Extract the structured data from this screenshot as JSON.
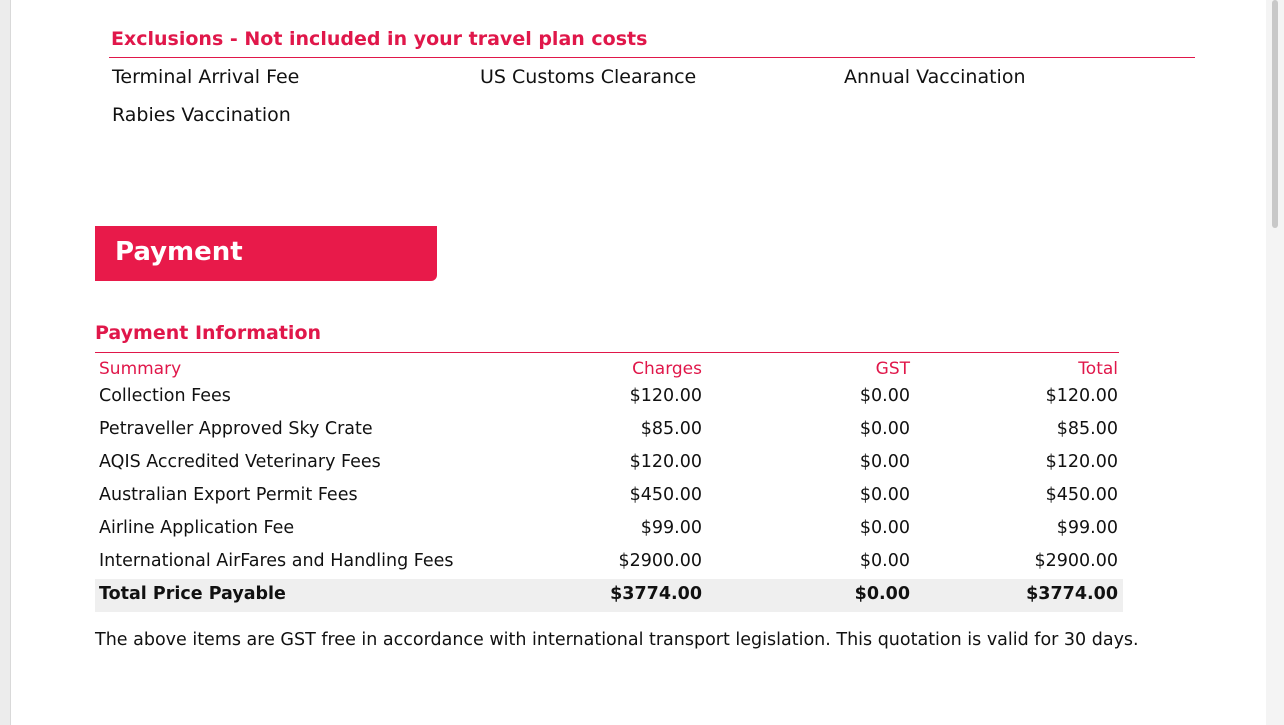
{
  "exclusions": {
    "title": "Exclusions - Not included in your travel plan costs",
    "items": [
      "Terminal Arrival Fee",
      "US Customs Clearance",
      "Annual Vaccination",
      "Rabies Vaccination"
    ]
  },
  "payment": {
    "banner": "Payment",
    "section_title": "Payment Information",
    "columns": [
      "Summary",
      "Charges",
      "GST",
      "Total"
    ],
    "rows": [
      {
        "summary": "Collection Fees",
        "charges": "$120.00",
        "gst": "$0.00",
        "total": "$120.00"
      },
      {
        "summary": "Petraveller Approved Sky Crate",
        "charges": "$85.00",
        "gst": "$0.00",
        "total": "$85.00"
      },
      {
        "summary": "AQIS Accredited Veterinary Fees",
        "charges": "$120.00",
        "gst": "$0.00",
        "total": "$120.00"
      },
      {
        "summary": "Australian Export Permit Fees",
        "charges": "$450.00",
        "gst": "$0.00",
        "total": "$450.00"
      },
      {
        "summary": "Airline Application Fee",
        "charges": "$99.00",
        "gst": "$0.00",
        "total": "$99.00"
      },
      {
        "summary": "International AirFares and Handling Fees",
        "charges": "$2900.00",
        "gst": "$0.00",
        "total": "$2900.00"
      }
    ],
    "total_row": {
      "summary": "Total Price Payable",
      "charges": "$3774.00",
      "gst": "$0.00",
      "total": "$3774.00"
    },
    "footnote": "The above items are GST free in accordance with international transport legislation. This quotation is valid for 30 days."
  },
  "colors": {
    "accent": "#e0174a",
    "banner": "#e81a4a",
    "total_row_bg": "#efefef"
  }
}
